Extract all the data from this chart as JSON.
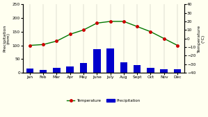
{
  "months": [
    "Jan",
    "Feb",
    "Mar",
    "Apr",
    "May",
    "June",
    "July",
    "Aug",
    "Sept",
    "Oct",
    "Nov",
    "Dec"
  ],
  "precipitation": [
    15,
    10,
    18,
    22,
    35,
    85,
    90,
    38,
    28,
    18,
    13,
    13
  ],
  "temperature_c": [
    -8,
    -7,
    -3,
    5,
    10,
    18,
    20,
    20,
    14,
    8,
    0,
    -8
  ],
  "precip_ylim": [
    0,
    250
  ],
  "temp_ylim": [
    -40,
    40
  ],
  "bar_color": "#0000cc",
  "line_color": "#007700",
  "marker_color": "#cc0000",
  "bg_color": "#fffff0",
  "ylabel_left": "Precipitation\n(mm)",
  "ylabel_right": "Temperature\n(°C)",
  "legend_temp": "Temperature",
  "legend_precip": "Precipitation",
  "yticks_left": [
    0,
    50,
    100,
    150,
    200,
    250
  ],
  "yticks_right": [
    -40,
    -30,
    -20,
    -10,
    0,
    10,
    20,
    30,
    40
  ]
}
